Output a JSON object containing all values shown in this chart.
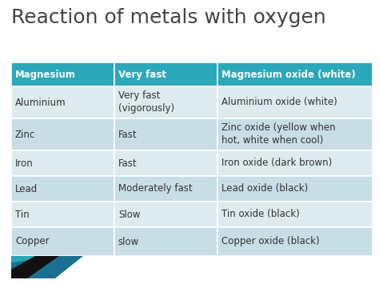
{
  "title": "Reaction of metals with oxygen",
  "title_color": "#444444",
  "title_fontsize": 18,
  "background_color": "#ffffff",
  "header_bg": "#2aa8ba",
  "header_text_color": "#ffffff",
  "row_bg_alt1": "#c8dde6",
  "row_bg_alt2": "#ddeaef",
  "last_row_bg": "#c8dde6",
  "rows": [
    [
      "Magnesium",
      "Very fast",
      "Magnesium oxide (white)"
    ],
    [
      "Aluminium",
      "Very fast\n(vigorously)",
      "Aluminium oxide (white)"
    ],
    [
      "Zinc",
      "Fast",
      "Zinc oxide (yellow when\nhot, white when cool)"
    ],
    [
      "Iron",
      "Fast",
      "Iron oxide (dark brown)"
    ],
    [
      "Lead",
      "Moderately fast",
      "Lead oxide (black)"
    ],
    [
      "Tin",
      "Slow",
      "Tin oxide (black)"
    ],
    [
      "Copper",
      "slow",
      "Copper oxide (black)"
    ]
  ],
  "text_color": "#333333",
  "cell_fontsize": 8.5,
  "header_fontsize": 8.5,
  "bottom_decoration_color1": "#2aa8ba",
  "bottom_decoration_color2": "#1a7090",
  "bottom_decoration_color3": "#111111"
}
